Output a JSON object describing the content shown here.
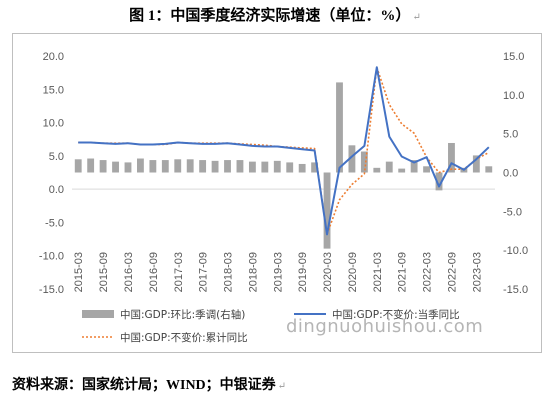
{
  "figure": {
    "title": "图 1：中国季度经济实际增速（单位：%）",
    "source": "资料来源：国家统计局；WIND；中银证券",
    "paragraph_mark": "↵",
    "watermark": "dingnuohuishou.com"
  },
  "chart_data": {
    "type": "bar",
    "categories": [
      "2015-03",
      "2015-06",
      "2015-09",
      "2015-12",
      "2016-03",
      "2016-06",
      "2016-09",
      "2016-12",
      "2017-03",
      "2017-06",
      "2017-09",
      "2017-12",
      "2018-03",
      "2018-06",
      "2018-09",
      "2018-12",
      "2019-03",
      "2019-06",
      "2019-09",
      "2019-12",
      "2020-03",
      "2020-06",
      "2020-09",
      "2020-12",
      "2021-03",
      "2021-06",
      "2021-09",
      "2021-12",
      "2022-03",
      "2022-06",
      "2022-09",
      "2022-12",
      "2023-03",
      "2023-06"
    ],
    "x_tick_labels": [
      "2015-03",
      "2015-09",
      "2016-03",
      "2016-09",
      "2017-03",
      "2017-09",
      "2018-03",
      "2018-09",
      "2019-03",
      "2019-09",
      "2020-03",
      "2020-09",
      "2021-03",
      "2021-09",
      "2022-03",
      "2022-09",
      "2023-03"
    ],
    "y_left": {
      "ticks": [
        "-15.0",
        "-10.0",
        "-5.0",
        "0.0",
        "5.0",
        "10.0",
        "15.0",
        "20.0"
      ],
      "ylim": [
        -15,
        20
      ]
    },
    "y_right": {
      "ticks": [
        "-15.0",
        "-10.0",
        "-5.0",
        "0.0",
        "5.0",
        "10.0",
        "15.0"
      ],
      "ylim": [
        -15,
        15
      ]
    },
    "grid": false,
    "legend_position": "bottom",
    "series": [
      {
        "name": "中国:GDP:环比:季调(右轴)",
        "type": "bar",
        "axis": "right",
        "color": "#a6a6a6",
        "values": [
          1.7,
          1.8,
          1.6,
          1.4,
          1.3,
          1.8,
          1.6,
          1.6,
          1.7,
          1.7,
          1.6,
          1.5,
          1.6,
          1.6,
          1.4,
          1.4,
          1.5,
          1.3,
          1.1,
          1.3,
          -9.8,
          11.6,
          3.5,
          2.7,
          0.6,
          1.4,
          0.5,
          1.6,
          0.8,
          -2.3,
          3.8,
          0.6,
          2.2,
          0.8
        ]
      },
      {
        "name": "中国:GDP:不变价:当季同比",
        "type": "line",
        "axis": "left",
        "color": "#4472c4",
        "values": [
          7.0,
          7.0,
          6.9,
          6.8,
          6.9,
          6.7,
          6.7,
          6.8,
          7.0,
          6.9,
          6.8,
          6.8,
          6.9,
          6.7,
          6.5,
          6.4,
          6.4,
          6.2,
          6.0,
          5.8,
          -6.8,
          3.2,
          4.9,
          6.5,
          18.3,
          7.9,
          4.9,
          4.0,
          4.8,
          0.4,
          3.9,
          2.9,
          4.5,
          6.3
        ]
      },
      {
        "name": "中国:GDP:不变价:累计同比",
        "type": "line",
        "axis": "left",
        "dash": true,
        "color": "#ed7d31",
        "values": [
          7.0,
          7.0,
          6.9,
          6.9,
          6.9,
          6.7,
          6.7,
          6.7,
          7.0,
          6.9,
          6.9,
          6.9,
          6.9,
          6.8,
          6.7,
          6.6,
          6.4,
          6.3,
          6.2,
          6.1,
          -6.8,
          -1.6,
          0.7,
          2.3,
          18.3,
          12.7,
          9.8,
          8.4,
          4.8,
          2.5,
          3.0,
          3.0,
          4.5,
          5.5
        ]
      }
    ]
  }
}
